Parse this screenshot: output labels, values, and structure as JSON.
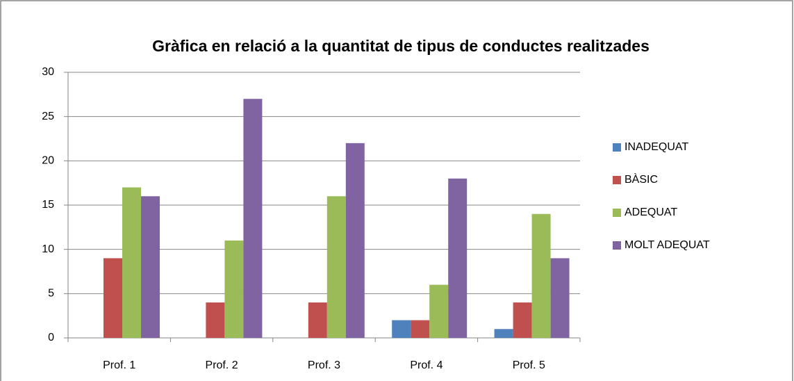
{
  "chart_data": {
    "type": "bar",
    "title": "Gràfica en relació a la quantitat de tipus de conductes realitzades",
    "categories": [
      "Prof. 1",
      "Prof. 2",
      "Prof. 3",
      "Prof. 4",
      "Prof. 5"
    ],
    "series": [
      {
        "name": "INADEQUAT",
        "color": "#4f81bd",
        "values": [
          0,
          0,
          0,
          2,
          1
        ]
      },
      {
        "name": "BÀSIC",
        "color": "#c0504d",
        "values": [
          9,
          4,
          4,
          2,
          4
        ]
      },
      {
        "name": "ADEQUAT",
        "color": "#9bbb59",
        "values": [
          17,
          11,
          16,
          6,
          14
        ]
      },
      {
        "name": "MOLT ADEQUAT",
        "color": "#8064a2",
        "values": [
          16,
          27,
          22,
          18,
          9
        ]
      }
    ],
    "ylim": [
      0,
      30
    ],
    "yticks": [
      0,
      5,
      10,
      15,
      20,
      25,
      30
    ],
    "grid": true,
    "legend": "right"
  }
}
